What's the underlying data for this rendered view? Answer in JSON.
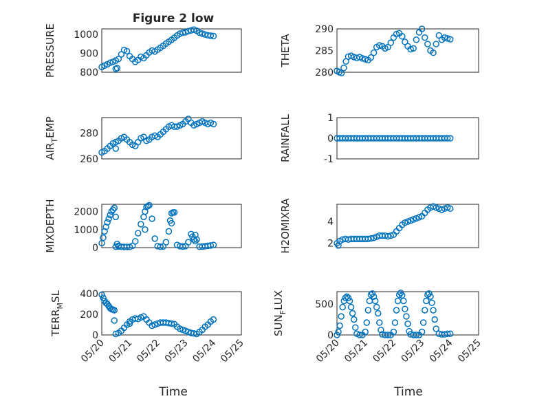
{
  "figure": {
    "title": "Figure 2 low",
    "xlabel": "Time",
    "xticklabels": [
      "05/20",
      "05/21",
      "05/22",
      "05/23",
      "05/24",
      "05/25"
    ],
    "marker_color": "#0072BD",
    "marker": "circle",
    "grid": "major+minor"
  },
  "chart_data": [
    {
      "id": "pressure",
      "type": "scatter",
      "ylabel": "PRESSURE",
      "ylim": [
        800,
        1030
      ],
      "yticks": [
        800,
        900,
        1000
      ],
      "xlim": [
        0,
        5
      ],
      "x": [
        0,
        0.1,
        0.2,
        0.3,
        0.4,
        0.5,
        0.6,
        0.7,
        0.8,
        0.9,
        1.0,
        1.1,
        1.2,
        1.3,
        1.4,
        1.5,
        1.6,
        1.7,
        1.8,
        1.9,
        2.0,
        2.1,
        2.2,
        2.3,
        2.4,
        2.5,
        2.6,
        2.7,
        2.8,
        2.9,
        3.0,
        3.1,
        3.2,
        3.3,
        3.4,
        3.5,
        3.6,
        3.7,
        3.8,
        3.9,
        4.0,
        0.55,
        0.5
      ],
      "y": [
        828,
        835,
        842,
        850,
        855,
        862,
        870,
        895,
        918,
        912,
        885,
        870,
        855,
        865,
        882,
        875,
        890,
        905,
        915,
        910,
        920,
        930,
        940,
        952,
        962,
        972,
        983,
        995,
        1005,
        1010,
        1012,
        1018,
        1022,
        1026,
        1020,
        1010,
        1005,
        1000,
        996,
        994,
        992,
        822,
        818
      ]
    },
    {
      "id": "theta",
      "type": "scatter",
      "ylabel": "THETA",
      "ylim": [
        280,
        290
      ],
      "yticks": [
        280,
        285,
        290
      ],
      "xlim": [
        0,
        5
      ],
      "x": [
        0,
        0.08,
        0.16,
        0.24,
        0.32,
        0.4,
        0.5,
        0.6,
        0.7,
        0.8,
        0.9,
        1.0,
        1.1,
        1.2,
        1.3,
        1.4,
        1.5,
        1.6,
        1.7,
        1.8,
        1.9,
        2.0,
        2.1,
        2.2,
        2.3,
        2.4,
        2.5,
        2.6,
        2.7,
        2.8,
        2.9,
        3.0,
        3.1,
        3.2,
        3.3,
        3.4,
        3.5,
        3.6,
        3.7,
        3.8,
        3.9,
        4.0
      ],
      "y": [
        280.3,
        280,
        279.8,
        281,
        282.5,
        283.6,
        283.8,
        283.5,
        283.3,
        283.5,
        283.2,
        283,
        282.8,
        283.4,
        284.5,
        285.8,
        286.2,
        286,
        285.5,
        285.8,
        286.8,
        288,
        288.8,
        289,
        288.3,
        287,
        286,
        285.3,
        285.5,
        287.5,
        289.2,
        290,
        288,
        286.5,
        285,
        284.5,
        286.5,
        288.5,
        287.5,
        288,
        287.8,
        287.6
      ]
    },
    {
      "id": "air_temp",
      "type": "scatter",
      "ylabel": "AIR_TEMP",
      "ylim": [
        260,
        292
      ],
      "yticks": [
        260,
        280
      ],
      "xlim": [
        0,
        5
      ],
      "x": [
        0,
        0.1,
        0.2,
        0.3,
        0.4,
        0.5,
        0.6,
        0.7,
        0.8,
        0.9,
        1.0,
        1.1,
        1.2,
        1.3,
        1.4,
        1.5,
        1.6,
        1.7,
        1.8,
        1.9,
        2.0,
        2.1,
        2.2,
        2.3,
        2.4,
        2.5,
        2.6,
        2.7,
        2.8,
        2.9,
        3.0,
        3.1,
        3.2,
        3.3,
        3.4,
        3.5,
        3.6,
        3.7,
        3.8,
        3.9,
        4.0,
        0.5
      ],
      "y": [
        265,
        266,
        268,
        270,
        272,
        273,
        274,
        276,
        277,
        275,
        273,
        271,
        270,
        273,
        276,
        277,
        274,
        275,
        277,
        278,
        277,
        279,
        281,
        283,
        285,
        286,
        285,
        285,
        286,
        287,
        289,
        291,
        288,
        286,
        287,
        288,
        289,
        288,
        287,
        288,
        287,
        268
      ]
    },
    {
      "id": "rainfall",
      "type": "scatter",
      "ylabel": "RAINFALL",
      "ylim": [
        -1,
        1
      ],
      "yticks": [
        -1,
        0,
        1
      ],
      "xlim": [
        0,
        5
      ],
      "x": [
        0,
        0.1,
        0.2,
        0.3,
        0.4,
        0.5,
        0.6,
        0.7,
        0.8,
        0.9,
        1.0,
        1.1,
        1.2,
        1.3,
        1.4,
        1.5,
        1.6,
        1.7,
        1.8,
        1.9,
        2.0,
        2.1,
        2.2,
        2.3,
        2.4,
        2.5,
        2.6,
        2.7,
        2.8,
        2.9,
        3.0,
        3.1,
        3.2,
        3.3,
        3.4,
        3.5,
        3.6,
        3.7,
        3.8,
        3.9,
        4.0
      ],
      "y": [
        0,
        0,
        0,
        0,
        0,
        0,
        0,
        0,
        0,
        0,
        0,
        0,
        0,
        0,
        0,
        0,
        0,
        0,
        0,
        0,
        0,
        0,
        0,
        0,
        0,
        0,
        0,
        0,
        0,
        0,
        0,
        0,
        0,
        0,
        0,
        0,
        0,
        0,
        0,
        0,
        0
      ]
    },
    {
      "id": "mixdepth",
      "type": "scatter",
      "ylabel": "MIXDEPTH",
      "ylim": [
        0,
        2400
      ],
      "yticks": [
        0,
        1000,
        2000
      ],
      "xlim": [
        0,
        5
      ],
      "x": [
        0,
        0.05,
        0.1,
        0.15,
        0.2,
        0.25,
        0.3,
        0.35,
        0.4,
        0.45,
        0.5,
        0.55,
        0.6,
        0.7,
        0.8,
        0.9,
        1.0,
        1.1,
        1.2,
        1.3,
        1.4,
        1.5,
        1.55,
        1.6,
        1.65,
        1.7,
        1.8,
        1.9,
        2.0,
        2.1,
        2.2,
        2.3,
        2.4,
        2.45,
        2.5,
        2.55,
        2.6,
        2.7,
        2.8,
        2.9,
        3.0,
        3.1,
        3.2,
        3.25,
        3.3,
        3.35,
        3.4,
        3.5,
        3.6,
        3.7,
        3.8,
        3.9,
        4.0,
        0.5,
        0.6,
        1.55,
        2.5,
        3.35
      ],
      "y": [
        250,
        550,
        900,
        1150,
        1400,
        1600,
        1800,
        2000,
        2100,
        2200,
        1700,
        200,
        100,
        50,
        40,
        40,
        40,
        100,
        350,
        800,
        1300,
        1700,
        2000,
        2250,
        2300,
        2350,
        1600,
        500,
        80,
        50,
        60,
        300,
        900,
        1500,
        1900,
        1950,
        1950,
        150,
        80,
        60,
        80,
        300,
        750,
        600,
        450,
        700,
        450,
        50,
        60,
        80,
        100,
        120,
        150,
        50,
        60,
        1000,
        1350,
        350
      ]
    },
    {
      "id": "h2omixra",
      "type": "scatter",
      "ylabel": "H2OMIXRA",
      "ylim": [
        1.6,
        5.6
      ],
      "yticks": [
        2,
        4
      ],
      "xlim": [
        0,
        5
      ],
      "x": [
        0,
        0.1,
        0.2,
        0.3,
        0.4,
        0.5,
        0.6,
        0.7,
        0.8,
        0.9,
        1.0,
        1.1,
        1.2,
        1.3,
        1.4,
        1.5,
        1.6,
        1.7,
        1.8,
        1.9,
        2.0,
        2.1,
        2.2,
        2.3,
        2.4,
        2.5,
        2.6,
        2.7,
        2.8,
        2.9,
        3.0,
        3.1,
        3.2,
        3.3,
        3.4,
        3.5,
        3.6,
        3.7,
        3.8,
        3.9,
        4.0,
        0.05
      ],
      "y": [
        2,
        2.2,
        2.35,
        2.4,
        2.35,
        2.4,
        2.4,
        2.4,
        2.4,
        2.4,
        2.4,
        2.4,
        2.45,
        2.5,
        2.6,
        2.7,
        2.7,
        2.7,
        2.65,
        2.7,
        2.8,
        3.1,
        3.4,
        3.7,
        3.9,
        4,
        4.1,
        4.2,
        4.3,
        4.4,
        4.5,
        4.8,
        5.1,
        5.3,
        5.4,
        5.3,
        5.2,
        5.1,
        5.2,
        5.3,
        5.2,
        1.8
      ]
    },
    {
      "id": "terr_msl",
      "type": "scatter",
      "ylabel": "TERR_MSL",
      "ylim": [
        0,
        420
      ],
      "yticks": [
        0,
        200,
        400
      ],
      "xlim": [
        0,
        5
      ],
      "x": [
        0,
        0.05,
        0.1,
        0.15,
        0.2,
        0.25,
        0.3,
        0.35,
        0.4,
        0.45,
        0.5,
        0.6,
        0.7,
        0.8,
        0.9,
        1.0,
        1.1,
        1.2,
        1.3,
        1.4,
        1.5,
        1.6,
        1.7,
        1.8,
        1.9,
        2.0,
        2.1,
        2.2,
        2.3,
        2.4,
        2.5,
        2.6,
        2.7,
        2.8,
        2.9,
        3.0,
        3.1,
        3.2,
        3.3,
        3.4,
        3.5,
        3.6,
        3.7,
        3.8,
        3.9,
        4.0,
        0.45,
        1.0
      ],
      "y": [
        390,
        360,
        330,
        310,
        300,
        280,
        260,
        250,
        245,
        240,
        10,
        20,
        40,
        70,
        100,
        130,
        150,
        160,
        155,
        170,
        180,
        150,
        120,
        90,
        100,
        110,
        120,
        120,
        120,
        115,
        110,
        105,
        80,
        60,
        50,
        40,
        30,
        20,
        15,
        10,
        30,
        50,
        80,
        100,
        130,
        150,
        140,
        110
      ]
    },
    {
      "id": "sun_flux",
      "type": "scatter",
      "ylabel": "SUN_FLUX",
      "ylim": [
        0,
        700
      ],
      "yticks": [
        0,
        500
      ],
      "xlim": [
        0,
        5
      ],
      "x": [
        0,
        0.05,
        0.1,
        0.15,
        0.2,
        0.25,
        0.3,
        0.35,
        0.4,
        0.45,
        0.5,
        0.55,
        0.6,
        0.65,
        0.7,
        0.8,
        0.9,
        1.0,
        1.05,
        1.1,
        1.15,
        1.2,
        1.25,
        1.3,
        1.35,
        1.4,
        1.45,
        1.5,
        1.55,
        1.6,
        1.7,
        1.8,
        1.9,
        2.0,
        2.05,
        2.1,
        2.15,
        2.2,
        2.25,
        2.3,
        2.35,
        2.4,
        2.45,
        2.5,
        2.55,
        2.6,
        2.7,
        2.8,
        2.9,
        3.0,
        3.05,
        3.1,
        3.15,
        3.2,
        3.25,
        3.3,
        3.35,
        3.4,
        3.45,
        3.5,
        3.6,
        3.7,
        3.8,
        3.9,
        4.0
      ],
      "y": [
        0,
        50,
        150,
        300,
        450,
        550,
        600,
        620,
        600,
        550,
        450,
        350,
        250,
        120,
        20,
        0,
        0,
        50,
        200,
        400,
        550,
        650,
        670,
        620,
        550,
        450,
        350,
        200,
        80,
        10,
        0,
        0,
        0,
        50,
        200,
        400,
        550,
        650,
        680,
        640,
        550,
        420,
        300,
        180,
        60,
        10,
        0,
        0,
        0,
        50,
        200,
        400,
        550,
        650,
        670,
        620,
        520,
        400,
        250,
        100,
        20,
        10,
        10,
        20,
        20
      ]
    }
  ]
}
